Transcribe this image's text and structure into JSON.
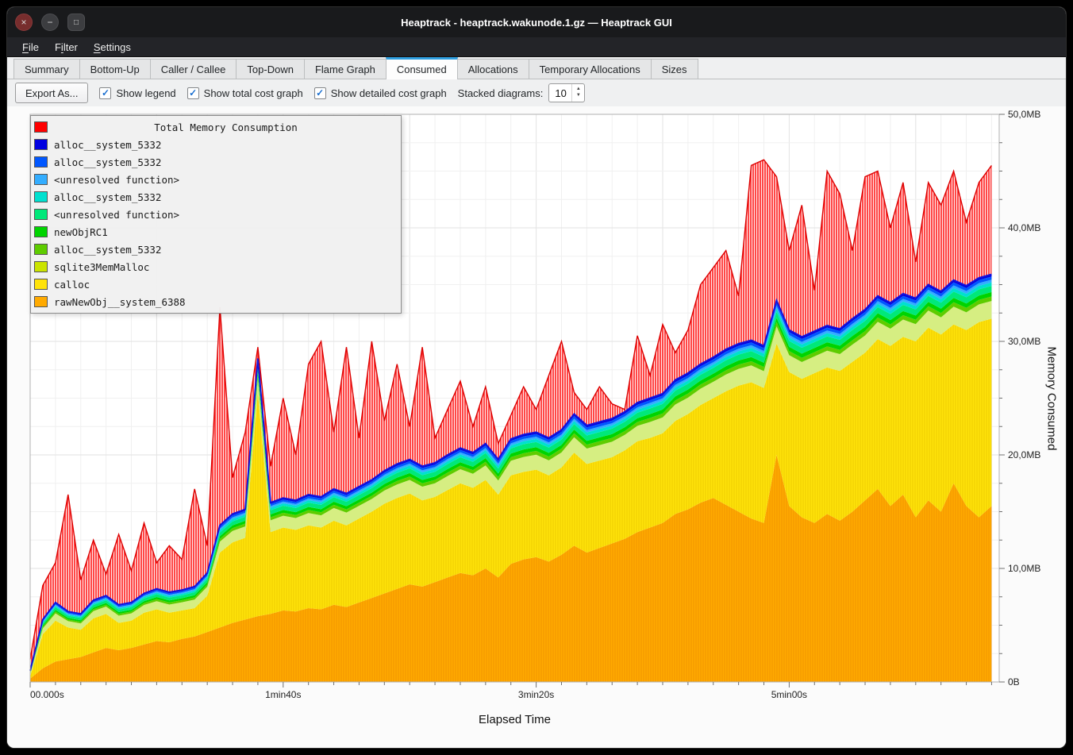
{
  "window": {
    "title": "Heaptrack - heaptrack.wakunode.1.gz — Heaptrack GUI",
    "controls": {
      "close": "×",
      "minimize": "−",
      "maximize": "□"
    }
  },
  "menu": {
    "items": [
      {
        "pre": "",
        "mn": "F",
        "post": "ile"
      },
      {
        "pre": "F",
        "mn": "i",
        "post": "lter"
      },
      {
        "pre": "",
        "mn": "S",
        "post": "ettings"
      }
    ]
  },
  "tabs": {
    "items": [
      "Summary",
      "Bottom-Up",
      "Caller / Callee",
      "Top-Down",
      "Flame Graph",
      "Consumed",
      "Allocations",
      "Temporary Allocations",
      "Sizes"
    ],
    "active": "Consumed"
  },
  "toolbar": {
    "export_label": "Export As...",
    "check_glyph": "✓",
    "spinner_up": "▲",
    "spinner_down": "▼",
    "checkboxes": [
      {
        "label": "Show legend",
        "checked": true
      },
      {
        "label": "Show total cost graph",
        "checked": true
      },
      {
        "label": "Show detailed cost graph",
        "checked": true
      }
    ],
    "stacked_label": "Stacked diagrams:",
    "stacked_value": "10"
  },
  "legend": {
    "title": {
      "label": "Total Memory Consumption",
      "color": "#ff0000"
    },
    "items": [
      {
        "label": "alloc__system_5332",
        "color": "#0000e0"
      },
      {
        "label": "alloc__system_5332",
        "color": "#0057ff"
      },
      {
        "label": "<unresolved function>",
        "color": "#33adff"
      },
      {
        "label": "alloc__system_5332",
        "color": "#00e0cf"
      },
      {
        "label": "<unresolved function>",
        "color": "#00e87a"
      },
      {
        "label": "newObjRC1",
        "color": "#00d400"
      },
      {
        "label": "alloc__system_5332",
        "color": "#5ecc00"
      },
      {
        "label": "sqlite3MemMalloc",
        "color": "#cbe400"
      },
      {
        "label": "calloc",
        "color": "#ffe30a"
      },
      {
        "label": "rawNewObj__system_6388",
        "color": "#ffaa00"
      }
    ]
  },
  "chart_data": {
    "type": "area",
    "title": "Total Memory Consumption",
    "xlabel": "Elapsed Time",
    "ylabel": "Memory Consumed",
    "xlim": [
      0,
      383
    ],
    "ylim": [
      0,
      50
    ],
    "grid": true,
    "legend_position": "top-left",
    "x_ticks": [
      {
        "v": 0,
        "label": "00.000s"
      },
      {
        "v": 100,
        "label": "1min40s"
      },
      {
        "v": 200,
        "label": "3min20s"
      },
      {
        "v": 300,
        "label": "5min00s"
      }
    ],
    "y_ticks": [
      {
        "v": 0,
        "label": "0B"
      },
      {
        "v": 10,
        "label": "10,0MB"
      },
      {
        "v": 20,
        "label": "20,0MB"
      },
      {
        "v": 30,
        "label": "30,0MB"
      },
      {
        "v": 40,
        "label": "40,0MB"
      },
      {
        "v": 50,
        "label": "50,0MB"
      }
    ],
    "x": [
      0,
      5,
      10,
      15,
      20,
      25,
      30,
      35,
      40,
      45,
      50,
      55,
      60,
      65,
      70,
      75,
      80,
      85,
      90,
      95,
      100,
      105,
      110,
      115,
      120,
      125,
      130,
      135,
      140,
      145,
      150,
      155,
      160,
      165,
      170,
      175,
      180,
      185,
      190,
      195,
      200,
      205,
      210,
      215,
      220,
      225,
      230,
      235,
      240,
      245,
      250,
      255,
      260,
      265,
      270,
      275,
      280,
      285,
      290,
      295,
      300,
      305,
      310,
      315,
      320,
      325,
      330,
      335,
      340,
      345,
      350,
      355,
      360,
      365,
      370,
      375,
      380
    ],
    "stack": {
      "edge_color": "#1212dd",
      "base_bands": [
        {
          "name": "rawNewObj__system_6388",
          "color": "#ffaa00",
          "stripe": "#f09400",
          "cum_top": [
            0.3,
            1.2,
            1.8,
            2.0,
            2.2,
            2.6,
            3.0,
            2.8,
            3.0,
            3.3,
            3.6,
            3.5,
            3.8,
            4.0,
            4.4,
            4.8,
            5.2,
            5.5,
            5.8,
            6.0,
            6.3,
            6.2,
            6.5,
            6.4,
            6.8,
            6.6,
            7.0,
            7.4,
            7.8,
            8.2,
            8.6,
            8.4,
            8.8,
            9.2,
            9.6,
            9.4,
            10.0,
            9.2,
            10.4,
            10.8,
            11.0,
            10.6,
            11.2,
            12.0,
            11.4,
            11.8,
            12.2,
            12.6,
            13.2,
            13.6,
            14.0,
            14.8,
            15.2,
            15.8,
            16.2,
            15.6,
            15.0,
            14.4,
            14.0,
            20.0,
            15.5,
            14.5,
            14.0,
            14.8,
            14.2,
            15.0,
            16.0,
            17.0,
            15.5,
            16.5,
            14.5,
            16.0,
            15.0,
            17.5,
            15.5,
            14.5,
            15.5
          ]
        },
        {
          "name": "calloc",
          "color": "#ffe30a",
          "stripe": "#eccb00",
          "cum_top": [
            0.5,
            4.2,
            5.4,
            4.8,
            4.6,
            5.6,
            6.0,
            5.2,
            5.4,
            6.1,
            6.4,
            6.1,
            6.3,
            6.5,
            7.6,
            11.4,
            12.3,
            12.7,
            25.5,
            13.2,
            13.6,
            13.4,
            13.8,
            13.6,
            14.2,
            13.8,
            14.4,
            15.0,
            15.7,
            16.2,
            16.6,
            16.0,
            16.3,
            16.9,
            17.5,
            17.1,
            17.8,
            16.5,
            18.2,
            18.5,
            18.7,
            18.2,
            18.9,
            20.2,
            19.2,
            19.5,
            19.8,
            20.4,
            21.2,
            21.5,
            21.9,
            23.0,
            23.6,
            24.4,
            25.0,
            25.6,
            26.1,
            26.4,
            25.9,
            29.8,
            27.3,
            26.7,
            27.2,
            27.7,
            27.4,
            28.2,
            29.0,
            30.2,
            29.6,
            30.4,
            30.0,
            31.2,
            30.6,
            31.5,
            31.0,
            31.7,
            32.0
          ]
        }
      ],
      "upper_bands": [
        {
          "name": "sqlite3MemMalloc",
          "color": "#d6ee82",
          "frac": 0.4
        },
        {
          "name": "alloc__system_5332",
          "color": "#5ecc00",
          "frac": 0.1
        },
        {
          "name": "newObjRC1",
          "color": "#00d400",
          "frac": 0.1
        },
        {
          "name": "<unresolved function>",
          "color": "#00e87a",
          "frac": 0.14
        },
        {
          "name": "alloc__system_5332",
          "color": "#00e0cf",
          "frac": 0.08
        },
        {
          "name": "<unresolved function>",
          "color": "#33adff",
          "frac": 0.06
        },
        {
          "name": "alloc__system_5332",
          "color": "#0057ff",
          "frac": 0.07
        },
        {
          "name": "alloc__system_5332",
          "color": "#0000e0",
          "frac": 0.05
        }
      ],
      "stack_top": [
        1.0,
        5.5,
        7.0,
        6.2,
        6.0,
        7.2,
        7.6,
        6.8,
        7.0,
        7.8,
        8.2,
        7.9,
        8.1,
        8.4,
        9.6,
        13.8,
        14.8,
        15.2,
        28.5,
        15.8,
        16.2,
        16.0,
        16.5,
        16.3,
        17.0,
        16.6,
        17.2,
        17.8,
        18.6,
        19.2,
        19.6,
        19.0,
        19.3,
        20.0,
        20.6,
        20.2,
        21.0,
        19.6,
        21.4,
        21.8,
        22.0,
        21.5,
        22.2,
        23.6,
        22.6,
        22.9,
        23.2,
        23.8,
        24.6,
        25.0,
        25.4,
        26.6,
        27.2,
        28.0,
        28.6,
        29.3,
        29.8,
        30.1,
        29.6,
        33.6,
        31.0,
        30.4,
        30.9,
        31.4,
        31.1,
        32.0,
        32.8,
        34.0,
        33.4,
        34.2,
        33.8,
        35.0,
        34.4,
        35.4,
        34.9,
        35.6,
        35.9
      ]
    },
    "total": {
      "name": "Total Memory Consumption",
      "color": "#dc0000",
      "fill_bg": "#ffe9e9",
      "stripe": "#ff2a2a",
      "values": [
        2.0,
        8.5,
        10.5,
        16.5,
        9.0,
        12.5,
        9.5,
        13.0,
        9.8,
        14.0,
        10.5,
        12.0,
        10.8,
        17.0,
        12.0,
        33.0,
        18.0,
        22.0,
        29.5,
        19.0,
        25.0,
        20.0,
        28.0,
        30.0,
        22.0,
        29.5,
        21.5,
        30.0,
        23.0,
        28.0,
        22.5,
        29.5,
        21.5,
        24.0,
        26.5,
        22.5,
        26.0,
        21.0,
        23.5,
        26.0,
        24.0,
        27.0,
        30.0,
        25.5,
        24.0,
        26.0,
        24.5,
        24.0,
        30.5,
        27.0,
        31.5,
        29.0,
        31.0,
        35.0,
        36.5,
        38.0,
        34.0,
        45.5,
        46.0,
        44.5,
        38.0,
        42.0,
        34.5,
        45.0,
        43.0,
        38.0,
        44.5,
        45.0,
        40.0,
        44.0,
        37.0,
        44.0,
        42.0,
        45.0,
        40.5,
        44.0,
        45.5
      ]
    }
  }
}
